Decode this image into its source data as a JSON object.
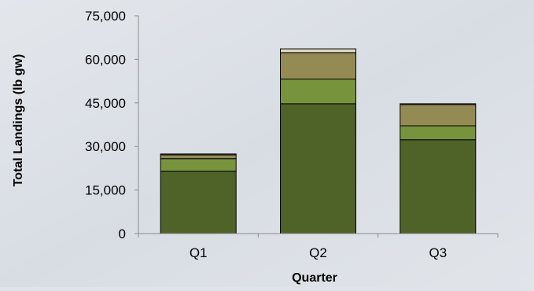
{
  "chart_data": {
    "type": "bar",
    "stacked": true,
    "title": "",
    "xlabel": "Quarter",
    "ylabel": "Total Landings (lb gw)",
    "categories": [
      "Q1",
      "Q2",
      "Q3"
    ],
    "ylim": [
      0,
      75000
    ],
    "yticks": [
      0,
      15000,
      30000,
      45000,
      60000,
      75000
    ],
    "ytick_labels": [
      "0",
      "15,000",
      "30,000",
      "45,000",
      "60,000",
      "75,000"
    ],
    "grid": false,
    "legend": "none",
    "series": [
      {
        "values": [
          21500,
          44700,
          32300
        ],
        "color": "#4f6228"
      },
      {
        "values": [
          4300,
          8500,
          4800
        ],
        "color": "#77933c"
      },
      {
        "values": [
          1300,
          9100,
          7300
        ],
        "color": "#948a54"
      },
      {
        "values": [
          300,
          1300,
          300
        ],
        "color": "#ddd9c3"
      }
    ],
    "background_color": "#dfe4ea"
  }
}
